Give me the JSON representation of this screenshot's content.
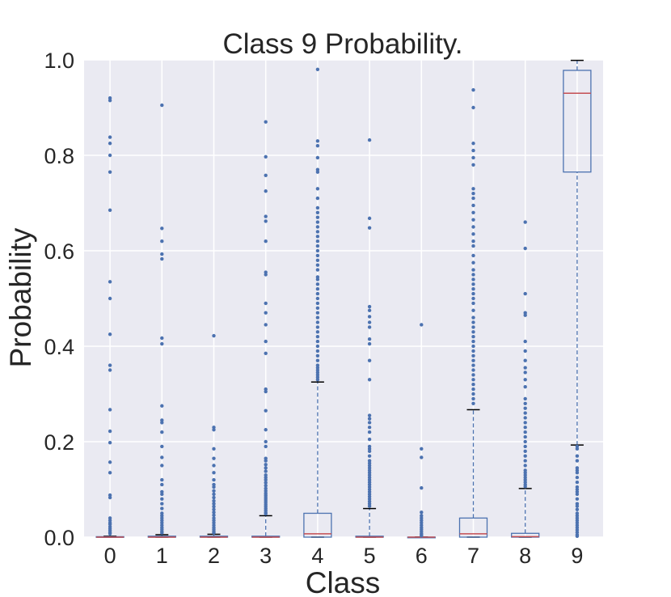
{
  "chart_data": {
    "type": "box",
    "title": "Class 9 Probability.",
    "xlabel": "Class",
    "ylabel": "Probability",
    "ylim": [
      0.0,
      1.0
    ],
    "yticks": [
      "0.0",
      "0.2",
      "0.4",
      "0.6",
      "0.8",
      "1.0"
    ],
    "categories": [
      "0",
      "1",
      "2",
      "3",
      "4",
      "5",
      "6",
      "7",
      "8",
      "9"
    ],
    "grid": true,
    "colors": {
      "background": "#eaeaf2",
      "grid": "#ffffff",
      "box": "#4c72b0",
      "median": "#c44e52",
      "whisker_cap": "#000000",
      "flier": "#4c72b0"
    },
    "boxes": [
      {
        "category": "0",
        "q1": 0.0,
        "median": 0.0,
        "q3": 0.001,
        "whisker_low": 0.0,
        "whisker_high": 0.002,
        "fliers": [
          0.92,
          0.915,
          0.838,
          0.825,
          0.8,
          0.765,
          0.685,
          0.535,
          0.5,
          0.425,
          0.36,
          0.35,
          0.267,
          0.222,
          0.198,
          0.157,
          0.135,
          0.088,
          0.083,
          0.04,
          0.035,
          0.03,
          0.027,
          0.022,
          0.018,
          0.014,
          0.01,
          0.007
        ]
      },
      {
        "category": "1",
        "q1": 0.0,
        "median": 0.0,
        "q3": 0.002,
        "whisker_low": 0.0,
        "whisker_high": 0.005,
        "fliers": [
          0.905,
          0.647,
          0.62,
          0.593,
          0.583,
          0.417,
          0.405,
          0.275,
          0.245,
          0.24,
          0.22,
          0.19,
          0.167,
          0.15,
          0.12,
          0.11,
          0.095,
          0.09,
          0.08,
          0.07,
          0.06,
          0.05,
          0.045,
          0.04,
          0.035,
          0.03,
          0.025,
          0.02,
          0.016,
          0.012,
          0.009
        ]
      },
      {
        "category": "2",
        "q1": 0.0,
        "median": 0.0,
        "q3": 0.002,
        "whisker_low": 0.0,
        "whisker_high": 0.006,
        "fliers": [
          0.422,
          0.23,
          0.225,
          0.185,
          0.165,
          0.15,
          0.135,
          0.12,
          0.11,
          0.105,
          0.097,
          0.09,
          0.083,
          0.076,
          0.07,
          0.064,
          0.058,
          0.052,
          0.046,
          0.04,
          0.035,
          0.03,
          0.025,
          0.02,
          0.016,
          0.012,
          0.009
        ]
      },
      {
        "category": "3",
        "q1": 0.0,
        "median": 0.0,
        "q3": 0.002,
        "whisker_low": 0.0,
        "whisker_high": 0.045,
        "fliers": [
          0.87,
          0.797,
          0.758,
          0.725,
          0.672,
          0.662,
          0.62,
          0.555,
          0.55,
          0.49,
          0.47,
          0.445,
          0.41,
          0.385,
          0.31,
          0.305,
          0.265,
          0.225,
          0.2,
          0.19,
          0.165,
          0.16,
          0.152,
          0.145,
          0.138,
          0.13,
          0.125,
          0.12,
          0.114,
          0.108,
          0.102,
          0.097,
          0.092,
          0.088,
          0.084,
          0.08,
          0.076,
          0.072,
          0.068,
          0.064,
          0.06,
          0.056,
          0.052,
          0.049
        ]
      },
      {
        "category": "4",
        "q1": 0.0,
        "median": 0.007,
        "q3": 0.05,
        "whisker_low": 0.0,
        "whisker_high": 0.325,
        "fliers": [
          0.98,
          0.83,
          0.82,
          0.795,
          0.77,
          0.765,
          0.73,
          0.71,
          0.69,
          0.68,
          0.67,
          0.66,
          0.65,
          0.64,
          0.63,
          0.62,
          0.61,
          0.6,
          0.59,
          0.58,
          0.57,
          0.56,
          0.545,
          0.54,
          0.53,
          0.52,
          0.51,
          0.5,
          0.49,
          0.48,
          0.47,
          0.46,
          0.45,
          0.44,
          0.43,
          0.42,
          0.41,
          0.4,
          0.39,
          0.38,
          0.37,
          0.36,
          0.355,
          0.35,
          0.345,
          0.34,
          0.335,
          0.33
        ]
      },
      {
        "category": "5",
        "q1": 0.0,
        "median": 0.0,
        "q3": 0.002,
        "whisker_low": 0.0,
        "whisker_high": 0.06,
        "fliers": [
          0.832,
          0.668,
          0.648,
          0.483,
          0.475,
          0.462,
          0.45,
          0.44,
          0.415,
          0.405,
          0.37,
          0.33,
          0.255,
          0.248,
          0.24,
          0.23,
          0.22,
          0.205,
          0.19,
          0.185,
          0.18,
          0.17,
          0.16,
          0.155,
          0.15,
          0.145,
          0.14,
          0.135,
          0.13,
          0.125,
          0.12,
          0.115,
          0.11,
          0.105,
          0.1,
          0.095,
          0.09,
          0.085,
          0.08,
          0.075,
          0.07,
          0.065
        ]
      },
      {
        "category": "6",
        "q1": 0.0,
        "median": 0.0,
        "q3": 0.0,
        "whisker_low": 0.0,
        "whisker_high": 0.0,
        "fliers": [
          0.445,
          0.185,
          0.167,
          0.103,
          0.052,
          0.045,
          0.04,
          0.035,
          0.03,
          0.025,
          0.02,
          0.016,
          0.012,
          0.008,
          0.005,
          0.003
        ]
      },
      {
        "category": "7",
        "q1": 0.0,
        "median": 0.007,
        "q3": 0.04,
        "whisker_low": 0.0,
        "whisker_high": 0.267,
        "fliers": [
          0.937,
          0.9,
          0.825,
          0.81,
          0.795,
          0.78,
          0.73,
          0.72,
          0.71,
          0.695,
          0.68,
          0.665,
          0.65,
          0.635,
          0.62,
          0.61,
          0.59,
          0.575,
          0.56,
          0.55,
          0.54,
          0.53,
          0.52,
          0.51,
          0.5,
          0.49,
          0.475,
          0.46,
          0.45,
          0.44,
          0.43,
          0.42,
          0.41,
          0.4,
          0.39,
          0.38,
          0.37,
          0.36,
          0.35,
          0.34,
          0.33,
          0.32,
          0.31,
          0.3,
          0.29,
          0.28
        ]
      },
      {
        "category": "8",
        "q1": 0.0,
        "median": 0.001,
        "q3": 0.008,
        "whisker_low": 0.0,
        "whisker_high": 0.102,
        "fliers": [
          0.66,
          0.605,
          0.51,
          0.47,
          0.465,
          0.41,
          0.39,
          0.37,
          0.355,
          0.345,
          0.33,
          0.315,
          0.29,
          0.28,
          0.27,
          0.26,
          0.25,
          0.24,
          0.23,
          0.22,
          0.21,
          0.2,
          0.19,
          0.18,
          0.17,
          0.16,
          0.15,
          0.14,
          0.135,
          0.13,
          0.125,
          0.12,
          0.115,
          0.11,
          0.106
        ]
      },
      {
        "category": "9",
        "q1": 0.765,
        "median": 0.93,
        "q3": 0.978,
        "whisker_low": 0.193,
        "whisker_high": 0.999,
        "fliers": [
          0.19,
          0.185,
          0.17,
          0.16,
          0.145,
          0.14,
          0.135,
          0.125,
          0.115,
          0.105,
          0.1,
          0.095,
          0.09,
          0.08,
          0.07,
          0.065,
          0.058,
          0.05,
          0.045,
          0.04,
          0.035,
          0.03,
          0.025,
          0.02,
          0.015,
          0.01,
          0.005,
          0.002
        ]
      }
    ]
  }
}
